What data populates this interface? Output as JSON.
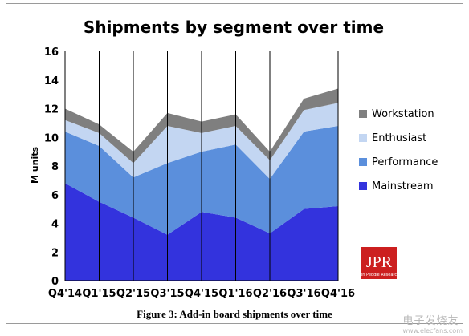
{
  "chart_data": {
    "type": "area",
    "stacked": true,
    "title": "Shipments by segment over time",
    "ylabel": "M units",
    "xlabel": "",
    "ylim": [
      0,
      16
    ],
    "yticks": [
      0,
      2,
      4,
      6,
      8,
      10,
      12,
      14,
      16
    ],
    "grid": "vertical",
    "legend_position": "right",
    "categories": [
      "Q4'14",
      "Q1'15",
      "Q2'15",
      "Q3'15",
      "Q4'15",
      "Q1'16",
      "Q2'16",
      "Q3'16",
      "Q4'16"
    ],
    "series": [
      {
        "name": "Mainstream",
        "color": "#3333dd",
        "values": [
          6.8,
          5.5,
          4.4,
          3.2,
          4.8,
          4.4,
          3.3,
          5.0,
          5.2
        ]
      },
      {
        "name": "Performance",
        "color": "#5b8fdc",
        "values": [
          3.6,
          3.9,
          2.8,
          5.0,
          4.2,
          5.1,
          3.8,
          5.4,
          5.6
        ]
      },
      {
        "name": "Enthusiast",
        "color": "#c3d6f2",
        "values": [
          0.8,
          0.9,
          1.0,
          2.6,
          1.3,
          1.3,
          1.3,
          1.5,
          1.6
        ]
      },
      {
        "name": "Workstation",
        "color": "#7f7f7f",
        "values": [
          0.8,
          0.6,
          0.8,
          0.9,
          0.8,
          0.8,
          0.6,
          0.8,
          1.0
        ]
      }
    ]
  },
  "logo": {
    "text": "JPR",
    "subtext": "Jon Peddie Research",
    "color": "#cc1f1f"
  },
  "caption": "Figure 3: Add-in board shipments over time",
  "watermark": {
    "text": "电子发烧友",
    "sub": "www.elecfans.com"
  }
}
